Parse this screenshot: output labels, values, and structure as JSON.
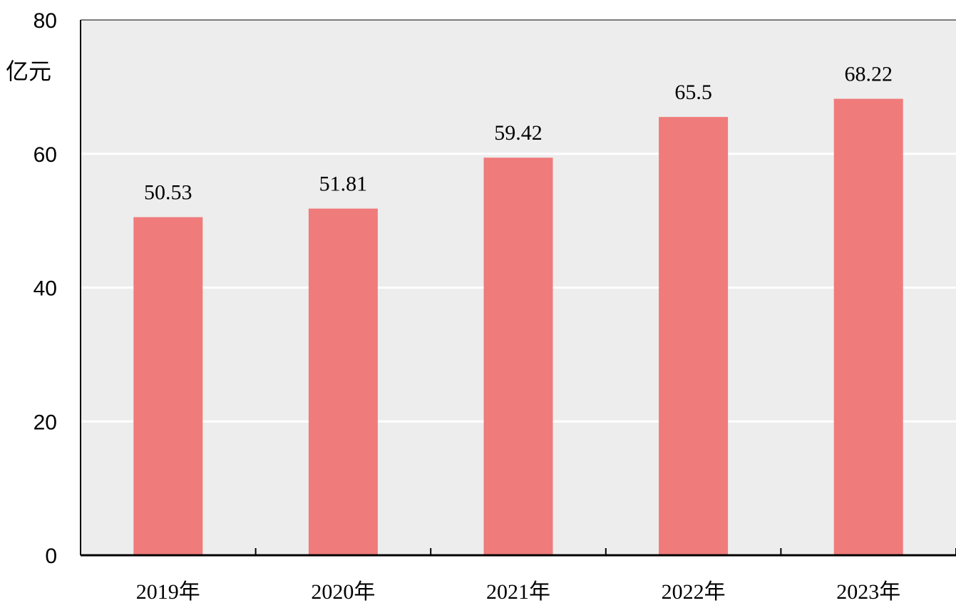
{
  "chart_data": {
    "type": "bar",
    "title": "",
    "xlabel": "",
    "ylabel": "亿元",
    "categories": [
      "2019年",
      "2020年",
      "2021年",
      "2022年",
      "2023年"
    ],
    "values": [
      50.53,
      51.81,
      59.42,
      65.5,
      68.22
    ],
    "data_labels": [
      "50.53",
      "51.81",
      "59.42",
      "65.5",
      "68.22"
    ],
    "ylim": [
      0,
      80
    ],
    "yticks": [
      0,
      20,
      40,
      60,
      80
    ],
    "ytick_labels": [
      "0",
      "20",
      "40",
      "60",
      "80"
    ],
    "grid": true,
    "legend": "none",
    "colors": {
      "bar": "#F07B7B",
      "plot_background": "#EDEDED",
      "gridline": "#FFFFFF",
      "axis": "#000000"
    }
  }
}
